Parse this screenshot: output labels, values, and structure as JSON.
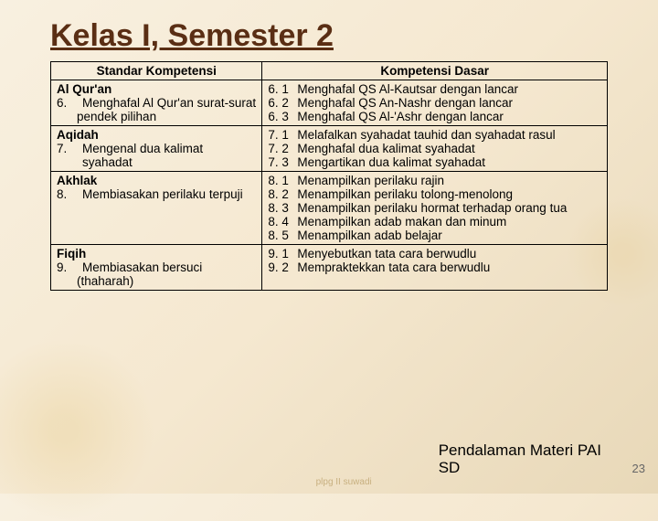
{
  "title": "Kelas I, Semester 2",
  "headers": {
    "col1": "Standar Kompetensi",
    "col2": "Kompetensi Dasar"
  },
  "sections": [
    {
      "label": "Al Qur'an",
      "sk_num": "6.",
      "sk_text": "Menghafal Al Qur'an surat-surat pendek pilihan",
      "kd": [
        {
          "n": "6. 1",
          "t": "Menghafal QS Al-Kautsar dengan lancar"
        },
        {
          "n": "6. 2",
          "t": "Menghafal QS An-Nashr dengan lancar"
        },
        {
          "n": "6. 3",
          "t": "Menghafal QS Al-'Ashr dengan lancar"
        }
      ]
    },
    {
      "label": "Aqidah",
      "sk_num": "7.",
      "sk_text": "Mengenal dua kalimat syahadat",
      "kd": [
        {
          "n": "7. 1",
          "t": "Melafalkan syahadat tauhid dan syahadat rasul"
        },
        {
          "n": "7. 2",
          "t": "Menghafal dua kalimat syahadat"
        },
        {
          "n": "7. 3",
          "t": "Mengartikan dua kalimat syahadat"
        }
      ]
    },
    {
      "label": "Akhlak",
      "sk_num": "8.",
      "sk_text": "Membiasakan perilaku terpuji",
      "kd": [
        {
          "n": "8. 1",
          "t": "Menampilkan perilaku rajin"
        },
        {
          "n": "8. 2",
          "t": "Menampilkan perilaku tolong-menolong"
        },
        {
          "n": "8. 3",
          "t": "Menampilkan perilaku hormat terhadap orang tua"
        },
        {
          "n": "8. 4",
          "t": "Menampilkan adab makan dan minum"
        },
        {
          "n": "8. 5",
          "t": "Menampilkan adab belajar"
        }
      ]
    },
    {
      "label": "Fiqih",
      "sk_num": "9.",
      "sk_text": "Membiasakan bersuci (thaharah)",
      "kd": [
        {
          "n": "9. 1",
          "t": "Menyebutkan tata cara berwudlu"
        },
        {
          "n": "9. 2",
          "t": "Mempraktekkan tata cara berwudlu"
        }
      ]
    }
  ],
  "footer": {
    "title1": "Pendalaman Materi PAI",
    "title2": "SD",
    "page": "23",
    "watermark": "plpg II  suwadi"
  }
}
